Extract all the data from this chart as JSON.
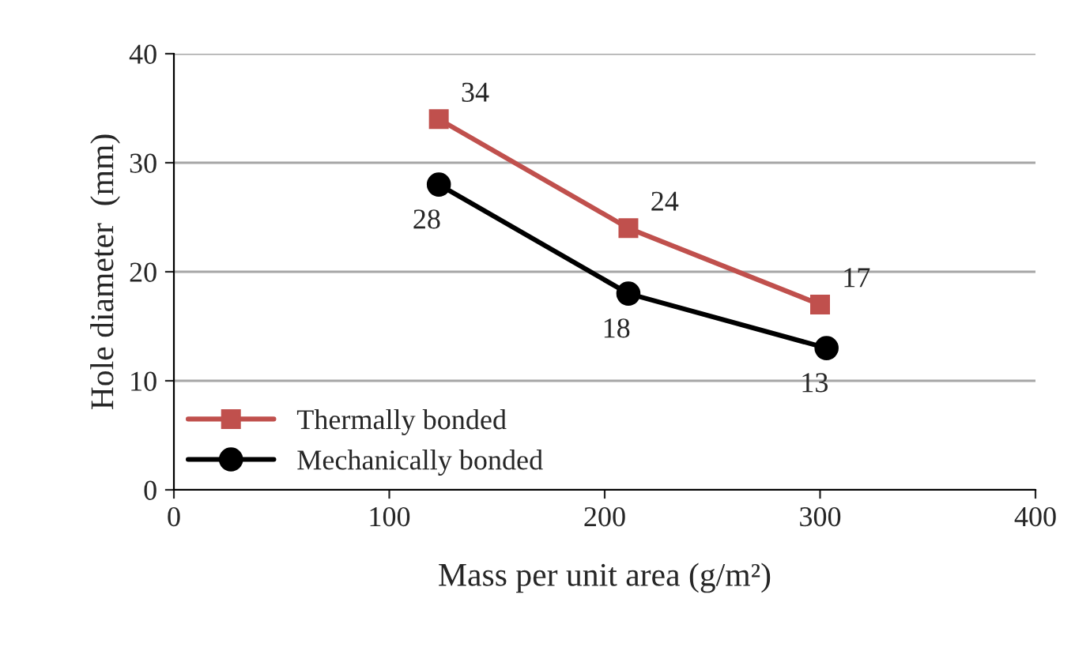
{
  "chart_data": {
    "type": "line",
    "xlabel": "Mass per unit area (g/m²)",
    "ylabel": "Hole diameter  (mm)",
    "xlim": [
      0,
      400
    ],
    "xticks": [
      0,
      100,
      200,
      300,
      400
    ],
    "ylim": [
      0,
      40
    ],
    "yticks": [
      0,
      10,
      20,
      30,
      40
    ],
    "grid": "y",
    "legend": "bottom left",
    "data_labels": true,
    "series": [
      {
        "name": "Thermally bonded",
        "color": "#c0504d",
        "marker": "square",
        "x": [
          123,
          211,
          300
        ],
        "values": [
          34,
          24,
          17
        ]
      },
      {
        "name": "Mechanically bonded",
        "color": "#000000",
        "marker": "circle",
        "x": [
          123,
          211,
          303
        ],
        "values": [
          28,
          18,
          13
        ]
      }
    ]
  }
}
